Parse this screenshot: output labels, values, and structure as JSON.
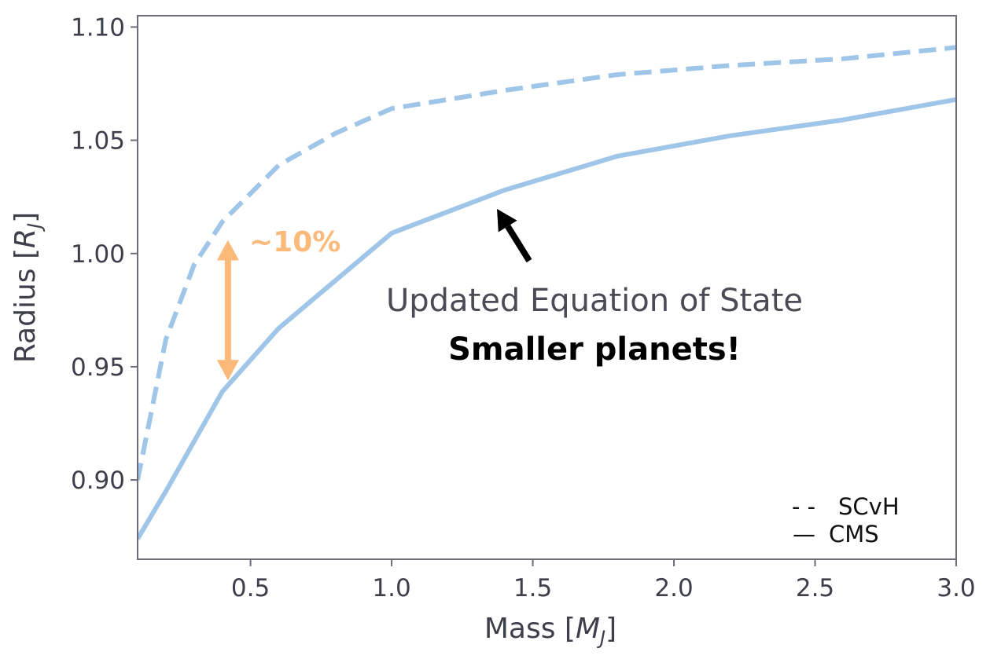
{
  "chart_data": {
    "type": "line",
    "xlabel": "Mass [",
    "xlabel_sym": "M",
    "xlabel_sub": "J",
    "xlabel_end": "]",
    "ylabel": "Radius [",
    "ylabel_sym": "R",
    "ylabel_sub": "J",
    "ylabel_end": "]",
    "xlim": [
      0.1,
      3.0
    ],
    "ylim": [
      0.865,
      1.105
    ],
    "xticks": [
      0.5,
      1.0,
      1.5,
      2.0,
      2.5,
      3.0
    ],
    "xtick_labels": [
      "0.5",
      "1.0",
      "1.5",
      "2.0",
      "2.5",
      "3.0"
    ],
    "yticks": [
      0.9,
      0.95,
      1.0,
      1.05,
      1.1
    ],
    "ytick_labels": [
      "0.90",
      "0.95",
      "1.00",
      "1.05",
      "1.10"
    ],
    "grid": false,
    "legend_position": "bottom-right",
    "series": [
      {
        "name": "SCvH",
        "style": "dashed",
        "color": "#9fc5e8",
        "x": [
          0.1,
          0.2,
          0.3,
          0.4,
          0.6,
          0.8,
          1.0,
          1.4,
          1.8,
          2.2,
          2.6,
          3.0
        ],
        "y": [
          0.9,
          0.962,
          0.995,
          1.014,
          1.039,
          1.053,
          1.064,
          1.072,
          1.079,
          1.083,
          1.086,
          1.091
        ]
      },
      {
        "name": "CMS",
        "style": "solid",
        "color": "#9fc5e8",
        "x": [
          0.1,
          0.2,
          0.4,
          0.6,
          0.8,
          1.0,
          1.4,
          1.8,
          2.2,
          2.6,
          3.0
        ],
        "y": [
          0.874,
          0.895,
          0.939,
          0.967,
          0.988,
          1.009,
          1.028,
          1.043,
          1.052,
          1.059,
          1.068
        ]
      }
    ],
    "annotations": {
      "percent_label": "~10%",
      "percent_color": "#fbb97a",
      "arrow_x": 0.42,
      "arrow_y": [
        0.944,
        1.006
      ],
      "line1": "Updated Equation of State",
      "line2": "Smaller planets!",
      "pointer_color": "#000000"
    },
    "legend": {
      "dashed_symbol": "- -",
      "solid_symbol": "—"
    }
  }
}
